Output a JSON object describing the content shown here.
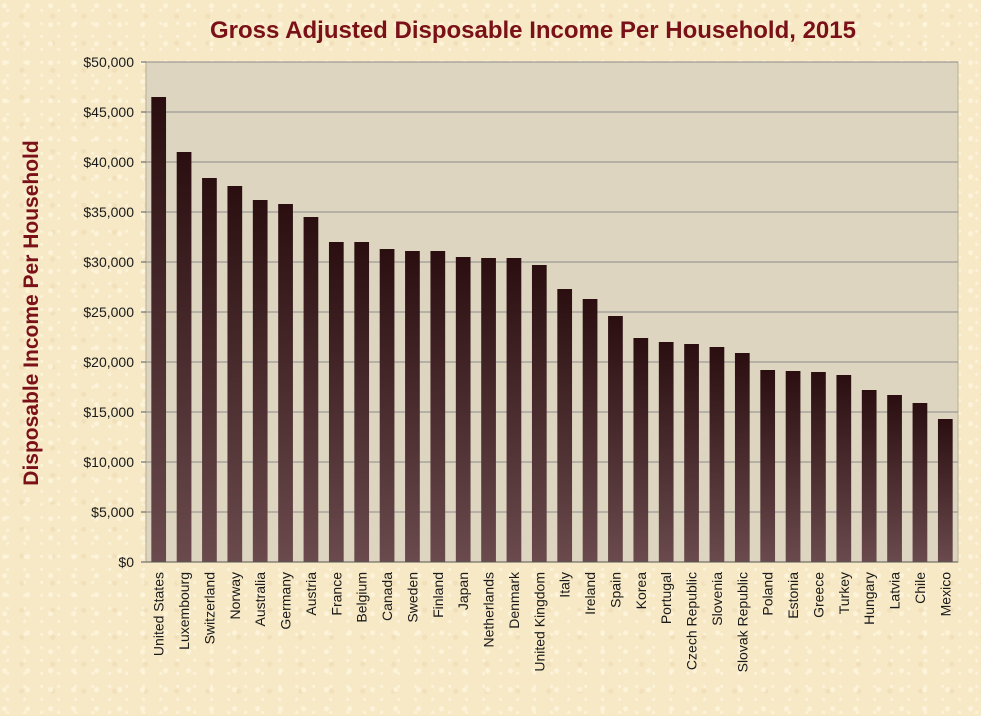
{
  "chart_data": {
    "type": "bar",
    "title": "Gross Adjusted Disposable Income Per Household, 2015",
    "xlabel": "",
    "ylabel": "Disposable Income Per Household",
    "ylim": [
      0,
      50000
    ],
    "yticks": [
      "$0",
      "$5,000",
      "$10,000",
      "$15,000",
      "$20,000",
      "$25,000",
      "$30,000",
      "$35,000",
      "$40,000",
      "$45,000",
      "$50,000"
    ],
    "grid": true,
    "legend": "none",
    "categories": [
      "United States",
      "Luxembourg",
      "Switzerland",
      "Norway",
      "Australia",
      "Germany",
      "Austria",
      "France",
      "Belgium",
      "Canada",
      "Sweden",
      "Finland",
      "Japan",
      "Netherlands",
      "Denmark",
      "United Kingdom",
      "Italy",
      "Ireland",
      "Spain",
      "Korea",
      "Portugal",
      "Czech Republic",
      "Slovenia",
      "Slovak Republic",
      "Poland",
      "Estonia",
      "Greece",
      "Turkey",
      "Hungary",
      "Latvia",
      "Chile",
      "Mexico"
    ],
    "values": [
      46500,
      41000,
      38400,
      37600,
      36200,
      35800,
      34500,
      32000,
      32000,
      31300,
      31100,
      31100,
      30500,
      30400,
      30400,
      29700,
      27300,
      26300,
      24600,
      22400,
      22000,
      21800,
      21500,
      20900,
      19200,
      19100,
      19000,
      18700,
      17200,
      16700,
      15900,
      14300
    ]
  },
  "colors": {
    "plot_background": "#ddd5bf",
    "bar_top": "#2a0e10",
    "bar_bottom": "#6a4a4c",
    "title": "#7a1018",
    "gridline": "#8c8c8c"
  }
}
